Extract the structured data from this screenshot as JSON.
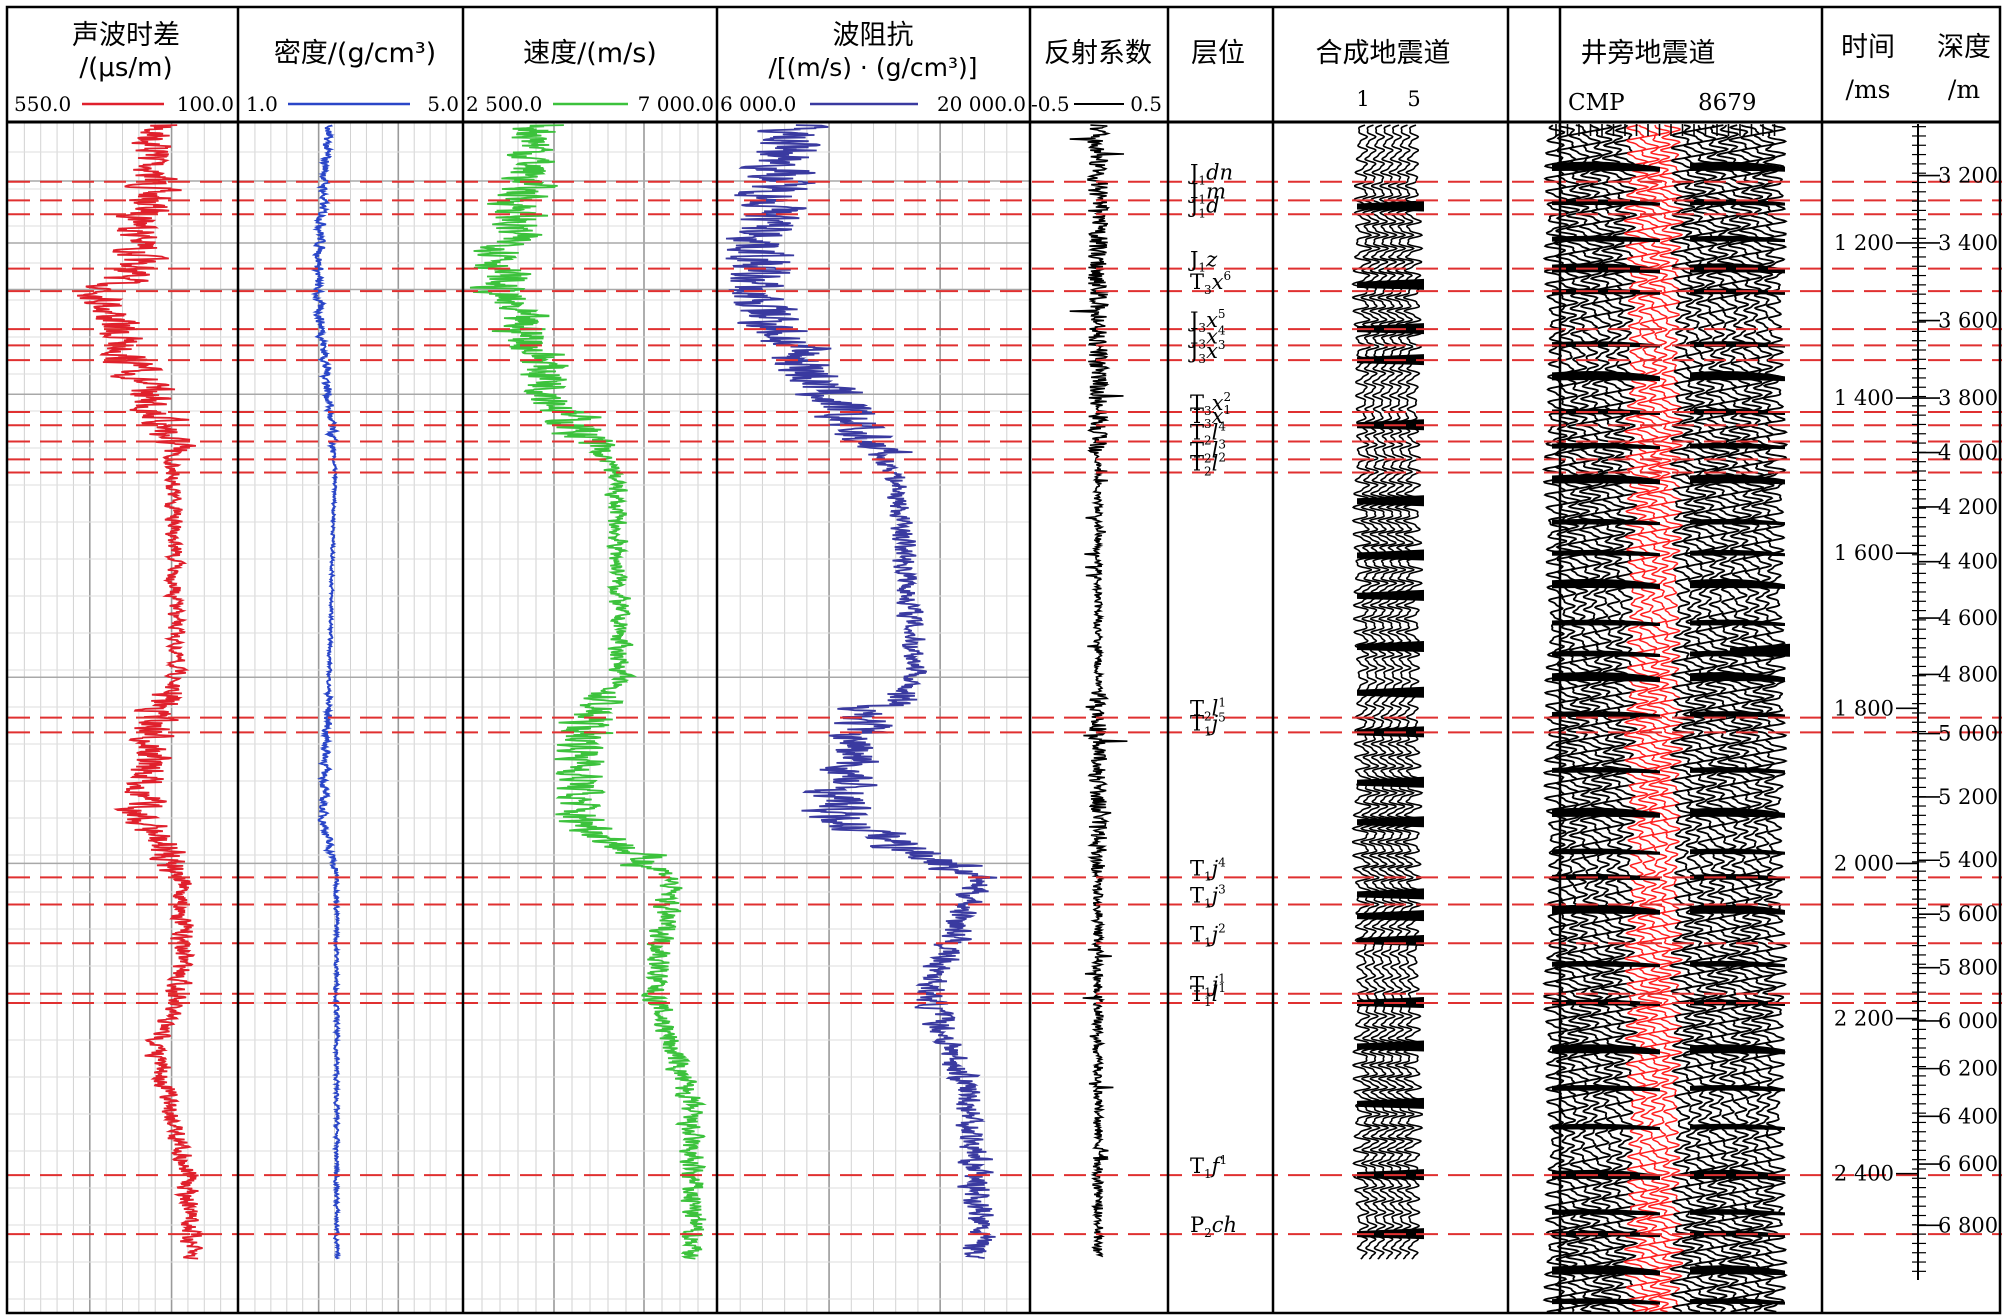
{
  "chart_data": {
    "type": "line",
    "tracks": [
      {
        "id": "ac",
        "title": "声波时差",
        "unit": "/(μs/m)",
        "min_label": "550.0",
        "max_label": "100.0",
        "color": "#e0202c"
      },
      {
        "id": "den",
        "title": "密度/(g/cm³)",
        "min_label": "1.0",
        "max_label": "5.0",
        "color": "#2a46c8"
      },
      {
        "id": "vel",
        "title": "速度/(m/s)",
        "min_label": "2 500.0",
        "max_label": "7 000.0",
        "color": "#3cc23c"
      },
      {
        "id": "imp",
        "title": "波阻抗",
        "unit": "/[(m/s) · (g/cm³)]",
        "min_label": "6 000.0",
        "max_label": "20 000.0",
        "color": "#3a3aa0"
      },
      {
        "id": "rc",
        "title": "反射系数",
        "min_label": "-0.5",
        "max_label": "0.5",
        "color": "#000000"
      }
    ],
    "horizon_title": "层位",
    "synthetic_title": "合成地震道",
    "synthetic_ticks": [
      "1",
      "5"
    ],
    "seismic_title": "井旁地震道",
    "seismic_cmp": "CMP",
    "seismic_cmp_number": "8679",
    "time_title": "时间",
    "time_unit": "/ms",
    "depth_title": "深度",
    "depth_unit": "/m",
    "horizons": [
      {
        "base": "J",
        "sub": "1",
        "name": "dn",
        "t": 1121
      },
      {
        "base": "J",
        "sub": "1",
        "name": "m",
        "t": 1145
      },
      {
        "base": "J",
        "sub": "1",
        "name": "d",
        "t": 1163
      },
      {
        "base": "J",
        "sub": "1",
        "name": "z",
        "t": 1233
      },
      {
        "base": "T",
        "sub": "3",
        "name": "x",
        "sup": "6",
        "t": 1262
      },
      {
        "base": "J",
        "sub": "3",
        "name": "x",
        "sup": "5",
        "t": 1311
      },
      {
        "base": "J",
        "sub": "3",
        "name": "x",
        "sup": "4",
        "t": 1332
      },
      {
        "base": "J",
        "sub": "3",
        "name": "x",
        "sup": "3",
        "t": 1351
      },
      {
        "base": "T",
        "sub": "3",
        "name": "x",
        "sup": "2",
        "t": 1418
      },
      {
        "base": "T",
        "sub": "3",
        "name": "x",
        "sup": "1",
        "t": 1435
      },
      {
        "base": "T",
        "sub": "2",
        "name": "l",
        "sup": "4",
        "t": 1456
      },
      {
        "base": "T",
        "sub": "2",
        "name": "l",
        "sup": "3",
        "t": 1479
      },
      {
        "base": "T",
        "sub": "2",
        "name": "l",
        "sup": "2",
        "t": 1496
      },
      {
        "base": "T",
        "sub": "2",
        "name": "l",
        "sup": "1",
        "t": 1812
      },
      {
        "base": "T",
        "sub": "1",
        "name": "j",
        "sup": "5",
        "t": 1831
      },
      {
        "base": "T",
        "sub": "1",
        "name": "j",
        "sup": "4",
        "t": 2018
      },
      {
        "base": "T",
        "sub": "1",
        "name": "j",
        "sup": "3",
        "t": 2053
      },
      {
        "base": "T",
        "sub": "1",
        "name": "j",
        "sup": "2",
        "t": 2103
      },
      {
        "base": "T",
        "sub": "1",
        "name": "j",
        "sup": "1",
        "t": 2168
      },
      {
        "base": "T",
        "sub": "1",
        "name": "l",
        "sup": "1",
        "t": 2180
      },
      {
        "base": "T",
        "sub": "1",
        "name": "f",
        "sup": "1",
        "t": 2402
      },
      {
        "base": "P",
        "sub": "2",
        "name": "ch",
        "t": 2478
      }
    ],
    "time_ticks": [
      1200,
      1400,
      1600,
      1800,
      2000,
      2200,
      2400
    ],
    "time_tick_labels": [
      "1 200",
      "1 400",
      "1 600",
      "1 800",
      "2 000",
      "2 200",
      "2 400"
    ],
    "depth_ticks": [
      3200,
      3400,
      3600,
      3800,
      4000,
      4200,
      4400,
      4600,
      4800,
      5000,
      5200,
      5400,
      5600,
      5800,
      6000,
      6200,
      6400,
      6600,
      6800
    ],
    "depth_tick_labels": [
      "3 200",
      "3 400",
      "3 600",
      "3 800",
      "4 000",
      "4 200",
      "4 400",
      "4 600",
      "4 800",
      "5 000",
      "5 200",
      "5 400",
      "5 600",
      "5 800",
      "6 000",
      "6 200",
      "6 400",
      "6 600",
      "6 800"
    ],
    "depth_vs_time": [
      [
        1000,
        2940
      ],
      [
        1200,
        3400
      ],
      [
        1400,
        3800
      ],
      [
        1600,
        4370
      ],
      [
        1800,
        4920
      ],
      [
        2000,
        5410
      ],
      [
        2200,
        5990
      ],
      [
        2400,
        6640
      ],
      [
        2600,
        7120
      ]
    ],
    "time_range": [
      1044,
      2581
    ],
    "log_profiles": {
      "ac": [
        [
          1044,
          255
        ],
        [
          1121,
          265
        ],
        [
          1233,
          300
        ],
        [
          1262,
          360
        ],
        [
          1351,
          315
        ],
        [
          1435,
          240
        ],
        [
          1496,
          225
        ],
        [
          1760,
          220
        ],
        [
          1812,
          260
        ],
        [
          1940,
          290
        ],
        [
          2010,
          210
        ],
        [
          2140,
          205
        ],
        [
          2240,
          260
        ],
        [
          2402,
          195
        ],
        [
          2478,
          190
        ]
      ],
      "den": [
        [
          1044,
          2.6
        ],
        [
          1262,
          2.4
        ],
        [
          1351,
          2.55
        ],
        [
          1496,
          2.72
        ],
        [
          1800,
          2.6
        ],
        [
          1940,
          2.5
        ],
        [
          2018,
          2.75
        ],
        [
          2478,
          2.75
        ]
      ],
      "vel": [
        [
          1044,
          3900
        ],
        [
          1262,
          3100
        ],
        [
          1351,
          3900
        ],
        [
          1418,
          4300
        ],
        [
          1496,
          5200
        ],
        [
          1760,
          5300
        ],
        [
          1812,
          4700
        ],
        [
          1940,
          4500
        ],
        [
          2018,
          6200
        ],
        [
          2168,
          5900
        ],
        [
          2300,
          6500
        ],
        [
          2478,
          6600
        ]
      ],
      "imp": [
        [
          1044,
          9500
        ],
        [
          1262,
          7400
        ],
        [
          1351,
          9800
        ],
        [
          1420,
          11500
        ],
        [
          1496,
          14000
        ],
        [
          1760,
          15000
        ],
        [
          1812,
          12500
        ],
        [
          1940,
          11200
        ],
        [
          2018,
          17800
        ],
        [
          2168,
          15500
        ],
        [
          2300,
          17300
        ],
        [
          2478,
          17800
        ]
      ]
    }
  }
}
